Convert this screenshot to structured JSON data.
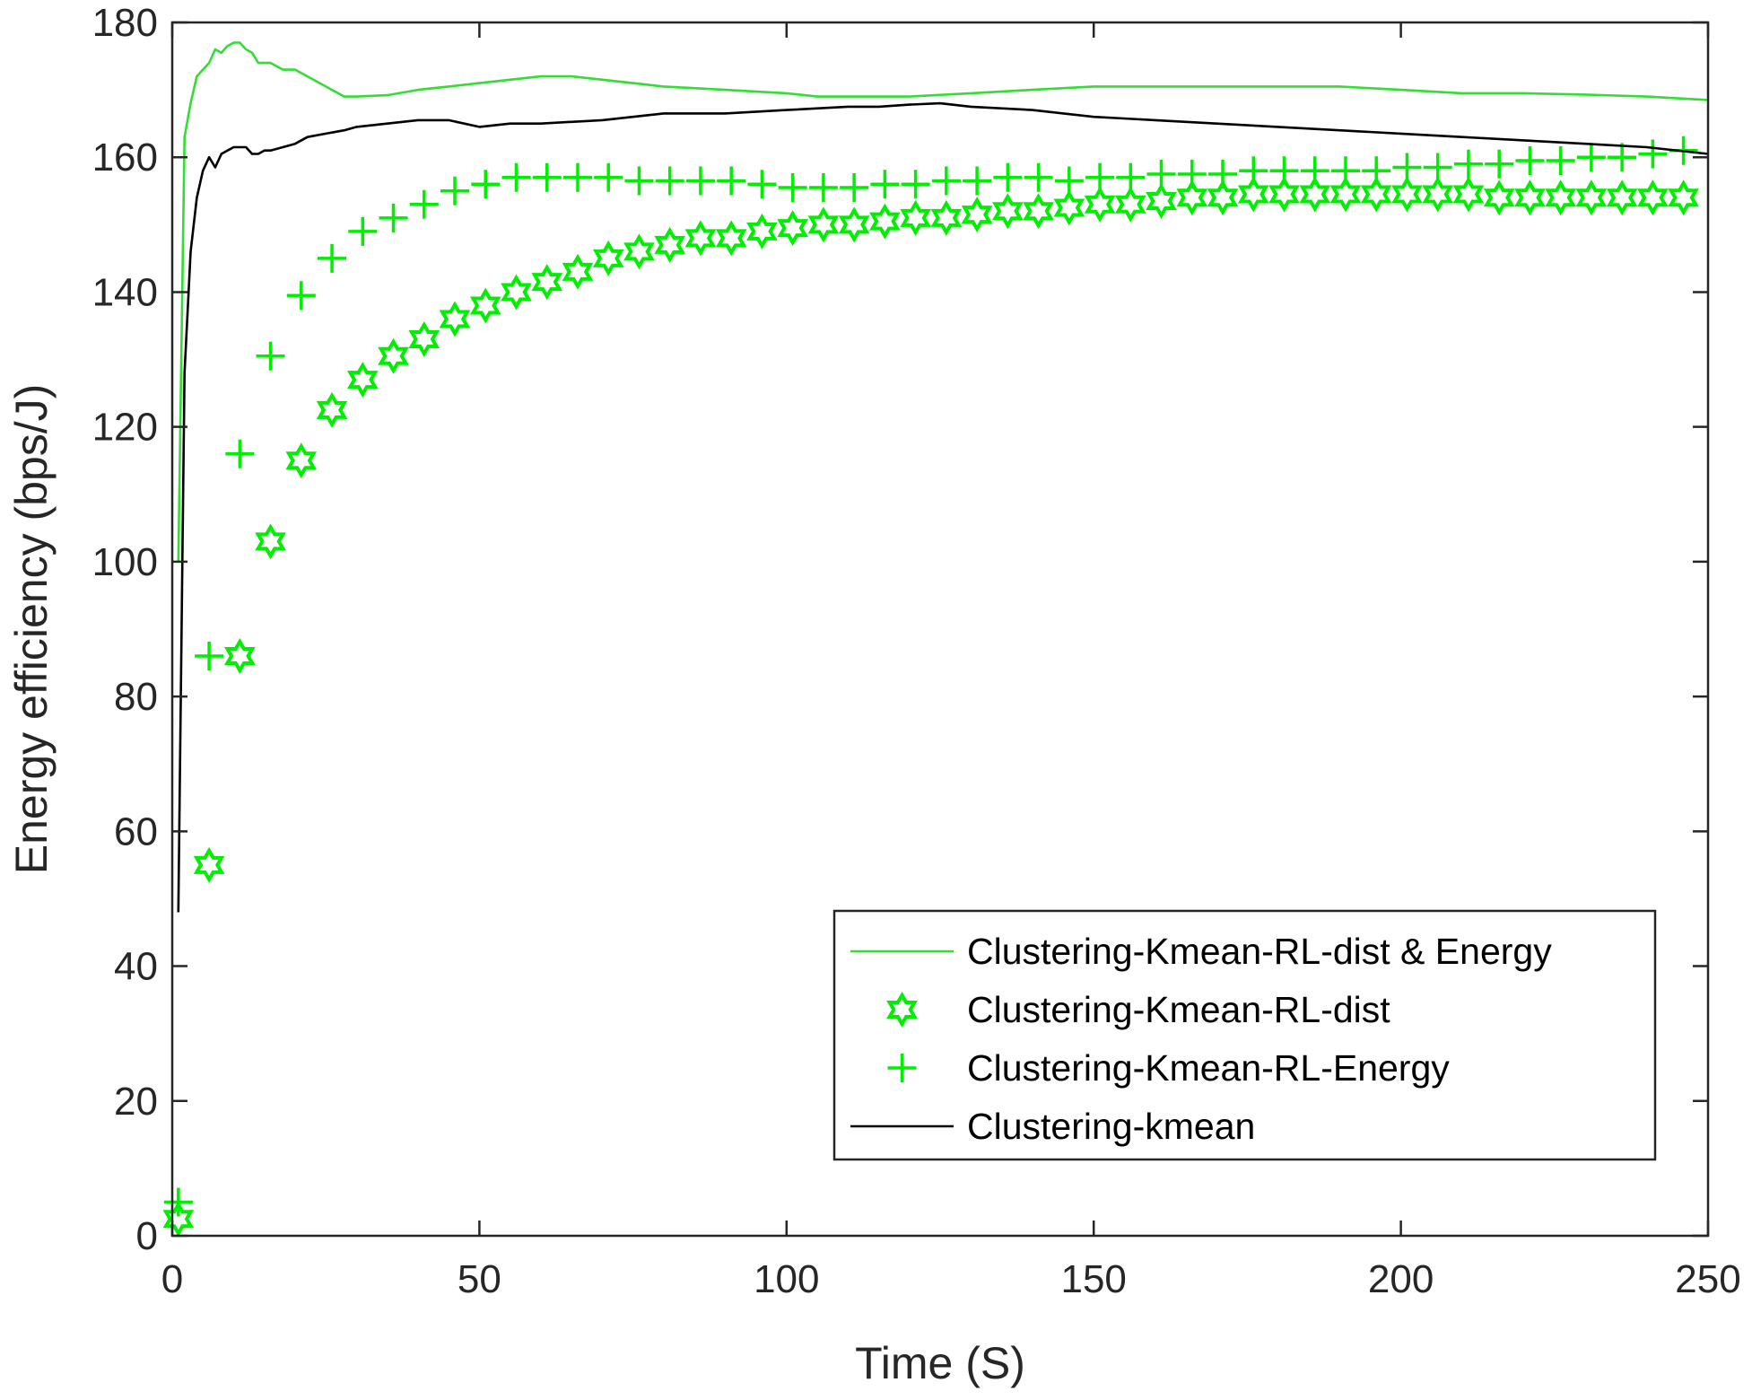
{
  "chart_data": {
    "type": "line",
    "title": "",
    "xlabel": "Time (S)",
    "ylabel": "Energy efficiency (bps/J)",
    "xlim": [
      0,
      250
    ],
    "ylim": [
      0,
      180
    ],
    "xticks": [
      0,
      50,
      100,
      150,
      200,
      250
    ],
    "yticks": [
      0,
      20,
      40,
      60,
      80,
      100,
      120,
      140,
      160,
      180
    ],
    "xtick_labels": [
      "0",
      "50",
      "100",
      "150",
      "200",
      "250"
    ],
    "ytick_labels": [
      "0",
      "20",
      "40",
      "60",
      "80",
      "100",
      "120",
      "140",
      "160",
      "180"
    ],
    "grid": false,
    "legend_position": "bottom-right",
    "series": [
      {
        "name": "Clustering-Kmean-RL-dist & Energy",
        "style": "line",
        "color": "#33dd33",
        "x": [
          1,
          2,
          3,
          4,
          5,
          6,
          7,
          8,
          9,
          10,
          11,
          12,
          13,
          14,
          15,
          16,
          18,
          20,
          22,
          24,
          26,
          28,
          30,
          35,
          40,
          45,
          50,
          55,
          60,
          65,
          70,
          75,
          80,
          90,
          100,
          105,
          110,
          115,
          120,
          130,
          140,
          150,
          160,
          170,
          180,
          190,
          200,
          210,
          220,
          230,
          240,
          250
        ],
        "values": [
          100,
          163,
          168,
          172,
          173,
          174,
          176,
          175.5,
          176.5,
          177,
          177,
          176,
          175.5,
          174,
          174,
          174,
          173,
          173,
          172,
          171,
          170,
          169,
          169,
          169.2,
          170,
          170.5,
          171,
          171.5,
          172,
          172,
          171.5,
          171,
          170.5,
          170,
          169.5,
          169,
          169,
          169,
          169,
          169.5,
          170,
          170.5,
          170.5,
          170.5,
          170.5,
          170.5,
          170,
          169.5,
          169.5,
          169.3,
          169,
          168.5
        ]
      },
      {
        "name": "Clustering-Kmean-RL-dist",
        "style": "markers-hexagram",
        "color": "#00ee00",
        "x": [
          1,
          6,
          11,
          16,
          21,
          26,
          31,
          36,
          41,
          46,
          51,
          56,
          61,
          66,
          71,
          76,
          81,
          86,
          91,
          96,
          101,
          106,
          111,
          116,
          121,
          126,
          131,
          136,
          141,
          146,
          151,
          156,
          161,
          166,
          171,
          176,
          181,
          186,
          191,
          196,
          201,
          206,
          211,
          216,
          221,
          226,
          231,
          236,
          241,
          246
        ],
        "values": [
          2.5,
          55,
          86,
          103,
          115,
          122.5,
          127,
          130.5,
          133,
          136,
          138,
          140,
          141.5,
          143,
          145,
          146,
          147,
          148,
          148,
          149,
          149.5,
          150,
          150,
          150.5,
          151,
          151,
          151.5,
          152,
          152,
          152.5,
          153,
          153,
          153.5,
          154,
          154,
          154.5,
          154.5,
          154.5,
          154.5,
          154.5,
          154.5,
          154.5,
          154.5,
          154,
          154,
          154,
          154,
          154,
          154,
          154
        ]
      },
      {
        "name": "Clustering-Kmean-RL-Energy",
        "style": "markers-plus",
        "color": "#00ee00",
        "x": [
          1,
          6,
          11,
          16,
          21,
          26,
          31,
          36,
          41,
          46,
          51,
          56,
          61,
          66,
          71,
          76,
          81,
          86,
          91,
          96,
          101,
          106,
          111,
          116,
          121,
          126,
          131,
          136,
          141,
          146,
          151,
          156,
          161,
          166,
          171,
          176,
          181,
          186,
          191,
          196,
          201,
          206,
          211,
          216,
          221,
          226,
          231,
          236,
          241,
          246
        ],
        "values": [
          5,
          86,
          116,
          130.5,
          139.5,
          145,
          149,
          151,
          153,
          155,
          156,
          157,
          157,
          157,
          157,
          156.5,
          156.5,
          156.5,
          156.5,
          156,
          155.5,
          155.5,
          155.5,
          156,
          156,
          156.5,
          156.5,
          157,
          157,
          156.5,
          157,
          157,
          157.5,
          157.5,
          157.5,
          158,
          158,
          158,
          158,
          158,
          158.5,
          158.5,
          159,
          159,
          159.5,
          159.5,
          160,
          160,
          160.5,
          161
        ]
      },
      {
        "name": "Clustering-kmean",
        "style": "line",
        "color": "#000000",
        "x": [
          1,
          2,
          3,
          4,
          5,
          6,
          7,
          8,
          9,
          10,
          11,
          12,
          13,
          14,
          15,
          16,
          18,
          20,
          22,
          25,
          28,
          30,
          35,
          40,
          45,
          50,
          55,
          60,
          70,
          80,
          90,
          100,
          110,
          115,
          120,
          125,
          130,
          140,
          150,
          160,
          170,
          180,
          190,
          200,
          210,
          220,
          230,
          240,
          250
        ],
        "values": [
          48,
          128,
          146,
          154,
          158,
          160,
          158.5,
          160.5,
          161,
          161.5,
          161.5,
          161.5,
          160.5,
          160.5,
          161,
          161,
          161.5,
          162,
          163,
          163.5,
          164,
          164.5,
          165,
          165.5,
          165.5,
          164.5,
          165,
          165,
          165.5,
          166.5,
          166.5,
          167,
          167.5,
          167.5,
          167.8,
          168,
          167.5,
          167,
          166,
          165.5,
          165,
          164.5,
          164,
          163.5,
          163,
          162.5,
          162,
          161.5,
          160.5
        ]
      }
    ]
  }
}
